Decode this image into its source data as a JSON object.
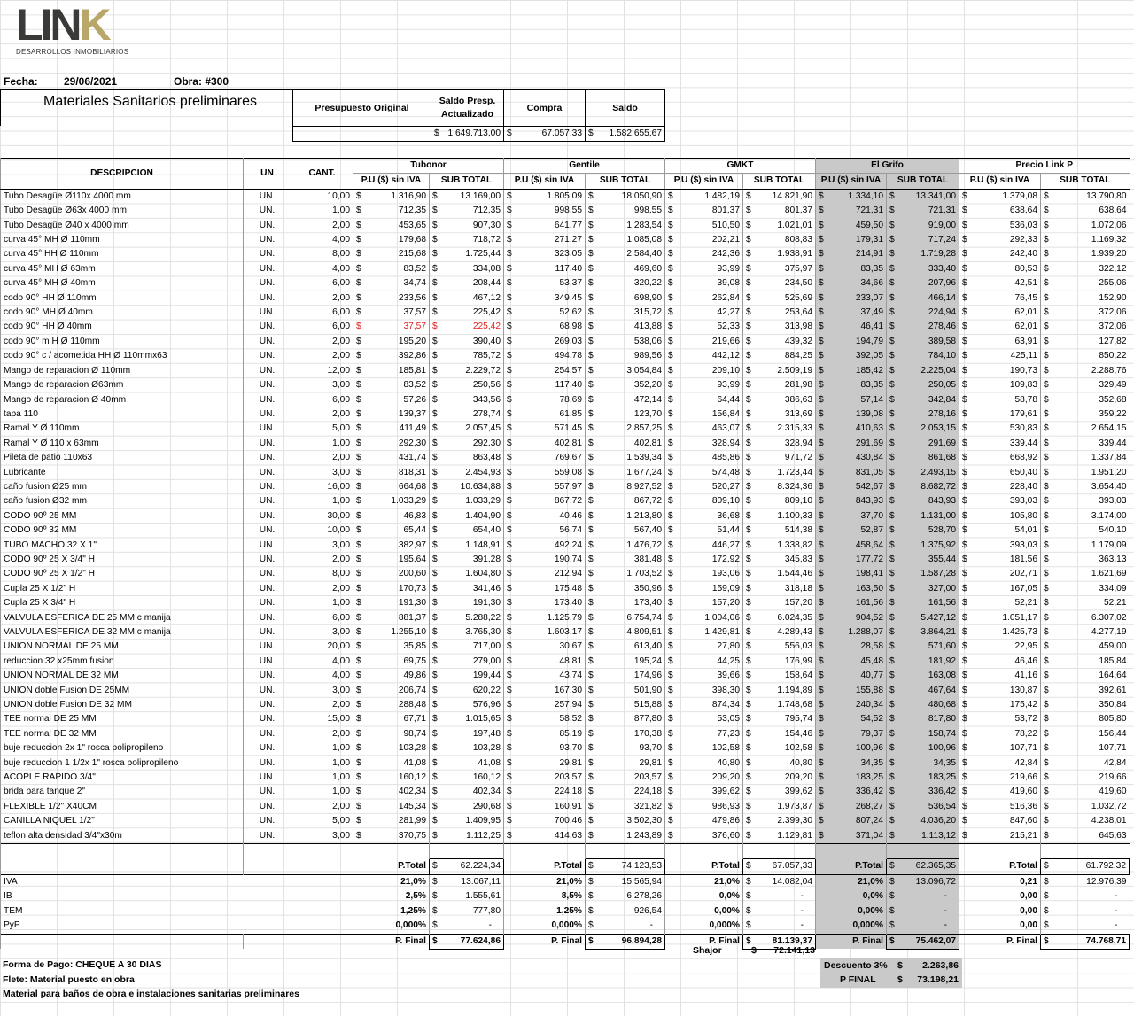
{
  "logo": {
    "text_main": "LIN",
    "text_k": "K",
    "subtitle": "DESARROLLOS INMOBILIARIOS"
  },
  "header": {
    "fecha_label": "Fecha:",
    "fecha": "29/06/2021",
    "obra_label": "Obra: #300"
  },
  "summary": {
    "title": "Materiales Sanitarios preliminares",
    "col1": "Presupuesto Original",
    "col2": "Saldo Presp. Actualizado",
    "col3": "Compra",
    "col4": "Saldo",
    "cur": "$",
    "v2": "1.649.713,00",
    "v3": "67.057,33",
    "v4": "1.582.655,67"
  },
  "table": {
    "headers": {
      "desc": "DESCRIPCION",
      "un": "UN",
      "cant": "CANT.",
      "pu": "P.U ($) sin IVA",
      "sub": "SUB TOTAL",
      "cur": "$"
    },
    "vendors": [
      "Tubonor",
      "Gentile",
      "GMKT",
      "El Grifo",
      "Precio Link P"
    ],
    "rows": [
      [
        "Tubo  Desagüe Ø110x 4000 mm",
        "UN.",
        "10,00",
        "1.316,90",
        "13.169,00",
        "1.805,09",
        "18.050,90",
        "1.482,19",
        "14.821,90",
        "1.334,10",
        "13.341,00",
        "1.379,08",
        "13.790,80"
      ],
      [
        "Tubo  Desagüe Ø63x 4000 mm",
        "UN.",
        "1,00",
        "712,35",
        "712,35",
        "998,55",
        "998,55",
        "801,37",
        "801,37",
        "721,31",
        "721,31",
        "638,64",
        "638,64"
      ],
      [
        "Tubo  Desagüe Ø40 x 4000 mm",
        "UN.",
        "2,00",
        "453,65",
        "907,30",
        "641,77",
        "1.283,54",
        "510,50",
        "1.021,01",
        "459,50",
        "919,00",
        "536,03",
        "1.072,06"
      ],
      [
        "curva  45° MH Ø 110mm",
        "UN.",
        "4,00",
        "179,68",
        "718,72",
        "271,27",
        "1.085,08",
        "202,21",
        "808,83",
        "179,31",
        "717,24",
        "292,33",
        "1.169,32"
      ],
      [
        "curva  45° HH Ø 110mm",
        "UN.",
        "8,00",
        "215,68",
        "1.725,44",
        "323,05",
        "2.584,40",
        "242,36",
        "1.938,91",
        "214,91",
        "1.719,28",
        "242,40",
        "1.939,20"
      ],
      [
        "curva  45° MH Ø 63mm",
        "UN.",
        "4,00",
        "83,52",
        "334,08",
        "117,40",
        "469,60",
        "93,99",
        "375,97",
        "83,35",
        "333,40",
        "80,53",
        "322,12"
      ],
      [
        "curva  45° MH Ø 40mm",
        "UN.",
        "6,00",
        "34,74",
        "208,44",
        "53,37",
        "320,22",
        "39,08",
        "234,50",
        "34,66",
        "207,96",
        "42,51",
        "255,06"
      ],
      [
        "codo 90° HH  Ø 110mm",
        "UN.",
        "2,00",
        "233,56",
        "467,12",
        "349,45",
        "698,90",
        "262,84",
        "525,69",
        "233,07",
        "466,14",
        "76,45",
        "152,90"
      ],
      [
        "codo 90° MH  Ø 40mm",
        "UN.",
        "6,00",
        "37,57",
        "225,42",
        "52,62",
        "315,72",
        "42,27",
        "253,64",
        "37,49",
        "224,94",
        "62,01",
        "372,06"
      ],
      [
        "codo 90° HH  Ø 40mm",
        "UN.",
        "6,00",
        "37,57",
        "225,42",
        "68,98",
        "413,88",
        "52,33",
        "313,98",
        "46,41",
        "278,46",
        "62,01",
        "372,06"
      ],
      [
        "codo 90° m H  Ø 110mm",
        "UN.",
        "2,00",
        "195,20",
        "390,40",
        "269,03",
        "538,06",
        "219,66",
        "439,32",
        "194,79",
        "389,58",
        "63,91",
        "127,82"
      ],
      [
        "codo 90° c / acometida HH  Ø 110mmx63",
        "UN.",
        "2,00",
        "392,86",
        "785,72",
        "494,78",
        "989,56",
        "442,12",
        "884,25",
        "392,05",
        "784,10",
        "425,11",
        "850,22"
      ],
      [
        "Mango de reparacion  Ø 110mm",
        "UN.",
        "12,00",
        "185,81",
        "2.229,72",
        "254,57",
        "3.054,84",
        "209,10",
        "2.509,19",
        "185,42",
        "2.225,04",
        "190,73",
        "2.288,76"
      ],
      [
        "Mango de reparacion  Ø63mm",
        "UN.",
        "3,00",
        "83,52",
        "250,56",
        "117,40",
        "352,20",
        "93,99",
        "281,98",
        "83,35",
        "250,05",
        "109,83",
        "329,49"
      ],
      [
        "Mango de reparacion  Ø 40mm",
        "UN.",
        "6,00",
        "57,26",
        "343,56",
        "78,69",
        "472,14",
        "64,44",
        "386,63",
        "57,14",
        "342,84",
        "58,78",
        "352,68"
      ],
      [
        "tapa 110",
        "UN.",
        "2,00",
        "139,37",
        "278,74",
        "61,85",
        "123,70",
        "156,84",
        "313,69",
        "139,08",
        "278,16",
        "179,61",
        "359,22"
      ],
      [
        "Ramal Y  Ø 110mm",
        "UN.",
        "5,00",
        "411,49",
        "2.057,45",
        "571,45",
        "2.857,25",
        "463,07",
        "2.315,33",
        "410,63",
        "2.053,15",
        "530,83",
        "2.654,15"
      ],
      [
        "Ramal Y  Ø 110 x 63mm",
        "UN.",
        "1,00",
        "292,30",
        "292,30",
        "402,81",
        "402,81",
        "328,94",
        "328,94",
        "291,69",
        "291,69",
        "339,44",
        "339,44"
      ],
      [
        "Pileta de patio 110x63",
        "UN.",
        "2,00",
        "431,74",
        "863,48",
        "769,67",
        "1.539,34",
        "485,86",
        "971,72",
        "430,84",
        "861,68",
        "668,92",
        "1.337,84"
      ],
      [
        "Lubricante",
        "UN.",
        "3,00",
        "818,31",
        "2.454,93",
        "559,08",
        "1.677,24",
        "574,48",
        "1.723,44",
        "831,05",
        "2.493,15",
        "650,40",
        "1.951,20"
      ],
      [
        "caño fusion  Ø25 mm",
        "UN.",
        "16,00",
        "664,68",
        "10.634,88",
        "557,97",
        "8.927,52",
        "520,27",
        "8.324,36",
        "542,67",
        "8.682,72",
        "228,40",
        "3.654,40"
      ],
      [
        "caño fusion  Ø32 mm",
        "UN.",
        "1,00",
        "1.033,29",
        "1.033,29",
        "867,72",
        "867,72",
        "809,10",
        "809,10",
        "843,93",
        "843,93",
        "393,03",
        "393,03"
      ],
      [
        "CODO 90º 25 MM",
        "UN.",
        "30,00",
        "46,83",
        "1.404,90",
        "40,46",
        "1.213,80",
        "36,68",
        "1.100,33",
        "37,70",
        "1.131,00",
        "105,80",
        "3.174,00"
      ],
      [
        "CODO 90º 32 MM",
        "UN.",
        "10,00",
        "65,44",
        "654,40",
        "56,74",
        "567,40",
        "51,44",
        "514,38",
        "52,87",
        "528,70",
        "54,01",
        "540,10"
      ],
      [
        "TUBO MACHO  32 X 1\"",
        "UN.",
        "3,00",
        "382,97",
        "1.148,91",
        "492,24",
        "1.476,72",
        "446,27",
        "1.338,82",
        "458,64",
        "1.375,92",
        "393,03",
        "1.179,09"
      ],
      [
        "CODO 90º 25 X 3/4\" H",
        "UN.",
        "2,00",
        "195,64",
        "391,28",
        "190,74",
        "381,48",
        "172,92",
        "345,83",
        "177,72",
        "355,44",
        "181,56",
        "363,13"
      ],
      [
        "CODO 90º 25 X 1/2\" H",
        "UN.",
        "8,00",
        "200,60",
        "1.604,80",
        "212,94",
        "1.703,52",
        "193,06",
        "1.544,46",
        "198,41",
        "1.587,28",
        "202,71",
        "1.621,69"
      ],
      [
        "Cupla  25 X 1/2\" H",
        "UN.",
        "2,00",
        "170,73",
        "341,46",
        "175,48",
        "350,96",
        "159,09",
        "318,18",
        "163,50",
        "327,00",
        "167,05",
        "334,09"
      ],
      [
        "Cupla  25 X 3/4\" H",
        "UN.",
        "1,00",
        "191,30",
        "191,30",
        "173,40",
        "173,40",
        "157,20",
        "157,20",
        "161,56",
        "161,56",
        "52,21",
        "52,21"
      ],
      [
        "VALVULA ESFERICA DE 25 MM c manija",
        "UN.",
        "6,00",
        "881,37",
        "5.288,22",
        "1.125,79",
        "6.754,74",
        "1.004,06",
        "6.024,35",
        "904,52",
        "5.427,12",
        "1.051,17",
        "6.307,02"
      ],
      [
        "VALVULA ESFERICA DE 32 MM c manija",
        "UN.",
        "3,00",
        "1.255,10",
        "3.765,30",
        "1.603,17",
        "4.809,51",
        "1.429,81",
        "4.289,43",
        "1.288,07",
        "3.864,21",
        "1.425,73",
        "4.277,19"
      ],
      [
        "UNION NORMAL DE 25 MM",
        "UN.",
        "20,00",
        "35,85",
        "717,00",
        "30,67",
        "613,40",
        "27,80",
        "556,03",
        "28,58",
        "571,60",
        "22,95",
        "459,00"
      ],
      [
        "reduccion 32 x25mm fusion",
        "UN.",
        "4,00",
        "69,75",
        "279,00",
        "48,81",
        "195,24",
        "44,25",
        "176,99",
        "45,48",
        "181,92",
        "46,46",
        "185,84"
      ],
      [
        "UNION NORMAL DE 32 MM",
        "UN.",
        "4,00",
        "49,86",
        "199,44",
        "43,74",
        "174,96",
        "39,66",
        "158,64",
        "40,77",
        "163,08",
        "41,16",
        "164,64"
      ],
      [
        "UNION doble Fusion  DE 25MM",
        "UN.",
        "3,00",
        "206,74",
        "620,22",
        "167,30",
        "501,90",
        "398,30",
        "1.194,89",
        "155,88",
        "467,64",
        "130,87",
        "392,61"
      ],
      [
        "UNION doble Fusion  DE 32 MM",
        "UN.",
        "2,00",
        "288,48",
        "576,96",
        "257,94",
        "515,88",
        "874,34",
        "1.748,68",
        "240,34",
        "480,68",
        "175,42",
        "350,84"
      ],
      [
        "TEE normal  DE 25 MM",
        "UN.",
        "15,00",
        "67,71",
        "1.015,65",
        "58,52",
        "877,80",
        "53,05",
        "795,74",
        "54,52",
        "817,80",
        "53,72",
        "805,80"
      ],
      [
        "TEE normal  DE 32  MM",
        "UN.",
        "2,00",
        "98,74",
        "197,48",
        "85,19",
        "170,38",
        "77,23",
        "154,46",
        "79,37",
        "158,74",
        "78,22",
        "156,44"
      ],
      [
        "buje reduccion 2x 1\" rosca polipropileno",
        "UN.",
        "1,00",
        "103,28",
        "103,28",
        "93,70",
        "93,70",
        "102,58",
        "102,58",
        "100,96",
        "100,96",
        "107,71",
        "107,71"
      ],
      [
        "buje reduccion 1 1/2x 1\" rosca polipropileno",
        "UN.",
        "1,00",
        "41,08",
        "41,08",
        "29,81",
        "29,81",
        "40,80",
        "40,80",
        "34,35",
        "34,35",
        "42,84",
        "42,84"
      ],
      [
        "ACOPLE RAPIDO 3/4\"",
        "UN.",
        "1,00",
        "160,12",
        "160,12",
        "203,57",
        "203,57",
        "209,20",
        "209,20",
        "183,25",
        "183,25",
        "219,66",
        "219,66"
      ],
      [
        "brida para tanque 2\"",
        "UN.",
        "1,00",
        "402,34",
        "402,34",
        "224,18",
        "224,18",
        "399,62",
        "399,62",
        "336,42",
        "336,42",
        "419,60",
        "419,60"
      ],
      [
        "FLEXIBLE  1/2\" X40CM",
        "UN.",
        "2,00",
        "145,34",
        "290,68",
        "160,91",
        "321,82",
        "986,93",
        "1.973,87",
        "268,27",
        "536,54",
        "516,36",
        "1.032,72"
      ],
      [
        "CANILLA NIQUEL 1/2\"",
        "UN.",
        "5,00",
        "281,99",
        "1.409,95",
        "700,46",
        "3.502,30",
        "479,86",
        "2.399,30",
        "807,24",
        "4.036,20",
        "847,60",
        "4.238,01"
      ],
      [
        "teflon alta densidad 3/4\"x30m",
        "UN.",
        "3,00",
        "370,75",
        "1.112,25",
        "414,63",
        "1.243,89",
        "376,60",
        "1.129,81",
        "371,04",
        "1.113,12",
        "215,21",
        "645,63"
      ]
    ],
    "red_row": 9,
    "ptotal_label": "P.Total",
    "pfinal_label": "P. Final",
    "ptotal": [
      "62.224,34",
      "74.123,53",
      "67.057,33",
      "62.365,35",
      "61.792,32"
    ],
    "taxes": [
      {
        "name": "IVA",
        "pct": [
          "21,0%",
          "21,0%",
          "21,0%",
          "21,0%",
          "0,21"
        ],
        "val": [
          "13.067,11",
          "15.565,94",
          "14.082,04",
          "13.096,72",
          "12.976,39"
        ]
      },
      {
        "name": "IB",
        "pct": [
          "2,5%",
          "8,5%",
          "0,0%",
          "0,0%",
          "0,00"
        ],
        "val": [
          "1.555,61",
          "6.278,26",
          "-",
          "-",
          "-"
        ]
      },
      {
        "name": "TEM",
        "pct": [
          "1,25%",
          "1,25%",
          "0,00%",
          "0,00%",
          "0,00"
        ],
        "val": [
          "777,80",
          "926,54",
          "-",
          "-",
          "-"
        ]
      },
      {
        "name": "PyP",
        "pct": [
          "0,000%",
          "0,000%",
          "0,000%",
          "0,000%",
          "0,00"
        ],
        "val": [
          "-",
          "-",
          "-",
          "-",
          "-"
        ]
      }
    ],
    "pfinal": [
      "77.624,86",
      "96.894,28",
      "81.139,37",
      "75.462,07",
      "74.768,71"
    ]
  },
  "footer": {
    "forma_pago": "Forma de Pago: CHEQUE A 30 DIAS",
    "flete": "Flete: Material puesto en obra",
    "material": "Material para baños de obra e instalaciones sanitarias preliminares",
    "shajor_label": "Shajor",
    "shajor": "72.141,13",
    "descuento_label": "Descuento 3%",
    "descuento": "2.263,86",
    "pfinal_label": "P FINAL",
    "pfinal": "73.198,21"
  }
}
